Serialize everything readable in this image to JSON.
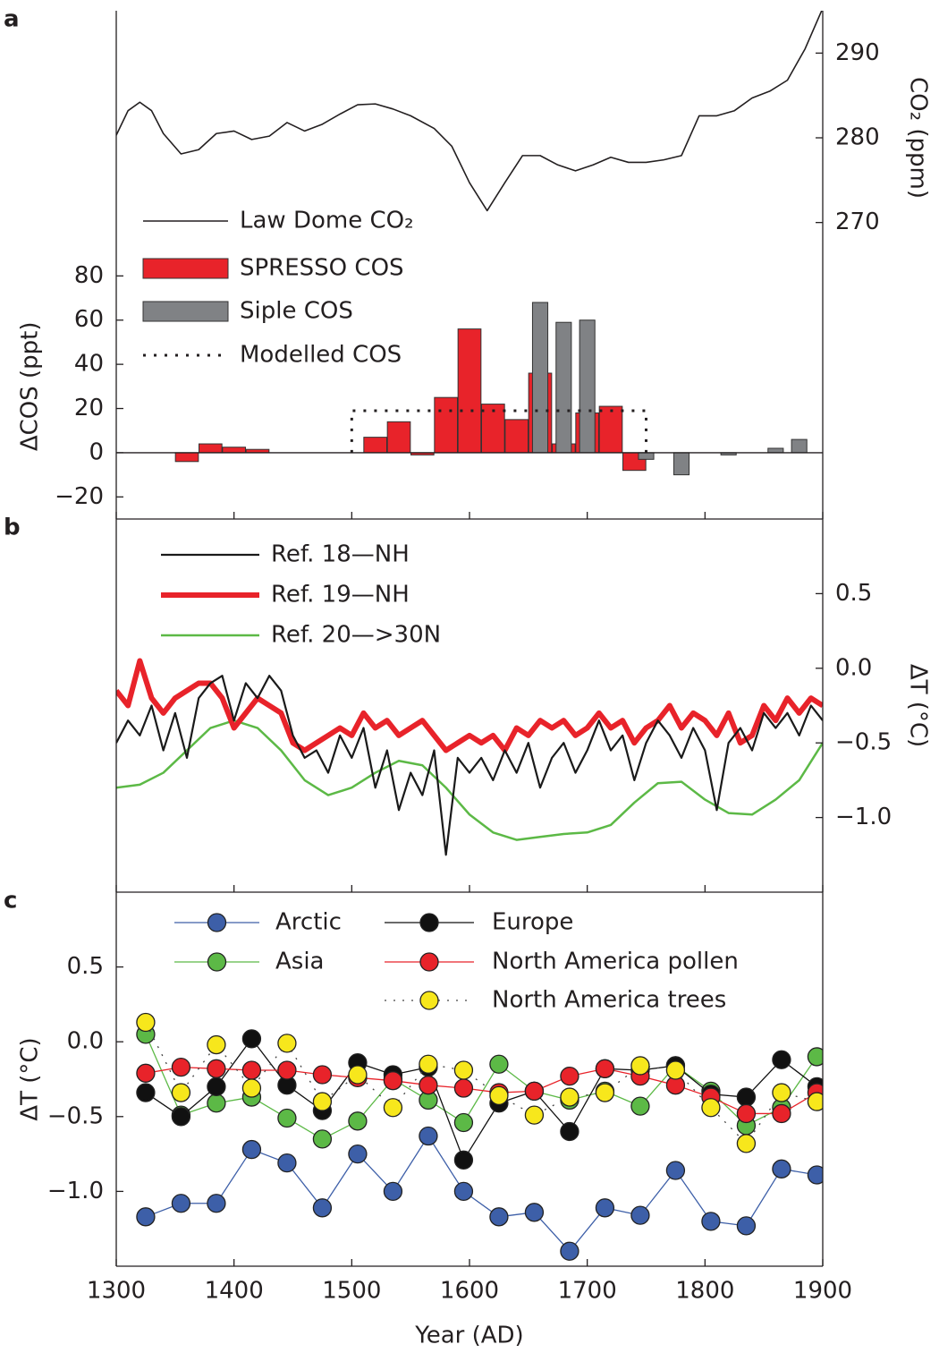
{
  "chart_data": [
    {
      "type": "bar",
      "panel_label": "a",
      "ylabel": "ΔCOS (ppt)",
      "y2label": "CO₂ (ppm)",
      "xlim": [
        1300,
        1900
      ],
      "ylim": [
        -30,
        200
      ],
      "yticks": [
        {
          "value": -20,
          "label": "−20"
        },
        0,
        20,
        40,
        60,
        80
      ],
      "y2lim": [
        235,
        295
      ],
      "y2ticks": [
        270,
        280,
        290
      ],
      "legend": "upper left",
      "series": [
        {
          "name": "Law Dome CO₂",
          "type": "line",
          "axis": "y2",
          "color": "#231f20",
          "x": [
            1300,
            1310,
            1320,
            1330,
            1340,
            1355,
            1370,
            1385,
            1400,
            1415,
            1430,
            1445,
            1460,
            1475,
            1490,
            1505,
            1520,
            1535,
            1550,
            1570,
            1585,
            1600,
            1615,
            1630,
            1645,
            1660,
            1675,
            1690,
            1705,
            1720,
            1735,
            1750,
            1765,
            1780,
            1795,
            1810,
            1825,
            1840,
            1855,
            1870,
            1885,
            1900
          ],
          "values": [
            280.3,
            283.2,
            284.2,
            283.2,
            280.5,
            278.1,
            278.6,
            280.5,
            280.8,
            279.8,
            280.2,
            281.8,
            280.8,
            281.6,
            282.8,
            283.9,
            284.0,
            283.4,
            282.6,
            281.1,
            279.0,
            274.7,
            271.4,
            274.7,
            277.9,
            277.9,
            276.8,
            276.1,
            276.8,
            277.7,
            277.1,
            277.1,
            277.4,
            277.9,
            282.6,
            282.6,
            283.2,
            284.7,
            285.5,
            286.8,
            290.5,
            295.3
          ]
        },
        {
          "name": "SPRESSO COS",
          "color": "#e8232a",
          "x": [
            1360,
            1380,
            1400,
            1420,
            1520,
            1540,
            1560,
            1580,
            1600,
            1620,
            1640,
            1660,
            1680,
            1700,
            1720,
            1740
          ],
          "values": [
            -4,
            4,
            2.5,
            1.5,
            7,
            14,
            -1,
            25,
            56,
            22,
            15,
            36,
            4,
            18,
            21,
            -8
          ]
        },
        {
          "name": "Siple COS",
          "color": "#808285",
          "x": [
            1660,
            1680,
            1700,
            1750,
            1780,
            1820,
            1860,
            1880
          ],
          "values": [
            68,
            59,
            60,
            -3,
            -10,
            -1,
            2,
            6
          ]
        },
        {
          "name": "Modelled COS",
          "type": "line",
          "line_style": "dotted",
          "color": "#231f20",
          "x": [
            1500,
            1500,
            1750,
            1750
          ],
          "values": [
            0,
            19,
            19,
            0
          ]
        }
      ]
    },
    {
      "type": "line",
      "panel_label": "b",
      "ylabel": "ΔT (°C)",
      "y_axis": "right",
      "xlim": [
        1300,
        1900
      ],
      "ylim": [
        -1.5,
        1.0
      ],
      "yticks": [
        0.5,
        {
          "value": 0,
          "label": "0.0"
        },
        {
          "value": -0.5,
          "label": "−0.5"
        },
        {
          "value": -1,
          "label": "−1.0"
        }
      ],
      "legend": "upper left",
      "series": [
        {
          "name": "Ref. 18—NH",
          "color": "#1a1a1a",
          "x": [
            1300,
            1310,
            1320,
            1330,
            1340,
            1350,
            1360,
            1370,
            1380,
            1390,
            1400,
            1410,
            1420,
            1430,
            1440,
            1450,
            1460,
            1470,
            1480,
            1490,
            1500,
            1510,
            1520,
            1530,
            1540,
            1550,
            1560,
            1570,
            1580,
            1590,
            1600,
            1610,
            1620,
            1630,
            1640,
            1650,
            1660,
            1670,
            1680,
            1690,
            1700,
            1710,
            1720,
            1730,
            1740,
            1750,
            1760,
            1770,
            1780,
            1790,
            1800,
            1810,
            1820,
            1830,
            1840,
            1850,
            1860,
            1870,
            1880,
            1890,
            1900
          ],
          "values": [
            -0.5,
            -0.35,
            -0.45,
            -0.25,
            -0.55,
            -0.3,
            -0.6,
            -0.2,
            -0.1,
            -0.05,
            -0.35,
            -0.1,
            -0.2,
            -0.05,
            -0.15,
            -0.45,
            -0.6,
            -0.55,
            -0.7,
            -0.45,
            -0.6,
            -0.4,
            -0.8,
            -0.55,
            -0.95,
            -0.7,
            -0.85,
            -0.55,
            -1.25,
            -0.6,
            -0.7,
            -0.6,
            -0.75,
            -0.55,
            -0.7,
            -0.5,
            -0.8,
            -0.6,
            -0.5,
            -0.7,
            -0.55,
            -0.35,
            -0.55,
            -0.45,
            -0.75,
            -0.5,
            -0.35,
            -0.45,
            -0.6,
            -0.4,
            -0.55,
            -0.95,
            -0.5,
            -0.4,
            -0.55,
            -0.3,
            -0.4,
            -0.3,
            -0.45,
            -0.25,
            -0.35
          ]
        },
        {
          "name": "Ref. 19—NH",
          "color": "#e8232a",
          "x": [
            1300,
            1310,
            1320,
            1330,
            1340,
            1350,
            1360,
            1370,
            1380,
            1390,
            1400,
            1410,
            1420,
            1430,
            1440,
            1450,
            1460,
            1470,
            1480,
            1490,
            1500,
            1510,
            1520,
            1530,
            1540,
            1550,
            1560,
            1570,
            1580,
            1590,
            1600,
            1610,
            1620,
            1630,
            1640,
            1650,
            1660,
            1670,
            1680,
            1690,
            1700,
            1710,
            1720,
            1730,
            1740,
            1750,
            1760,
            1770,
            1780,
            1790,
            1800,
            1810,
            1820,
            1830,
            1840,
            1850,
            1860,
            1870,
            1880,
            1890,
            1900
          ],
          "values": [
            -0.15,
            -0.25,
            0.05,
            -0.2,
            -0.3,
            -0.2,
            -0.15,
            -0.1,
            -0.1,
            -0.2,
            -0.4,
            -0.3,
            -0.2,
            -0.25,
            -0.3,
            -0.5,
            -0.55,
            -0.5,
            -0.45,
            -0.4,
            -0.45,
            -0.3,
            -0.4,
            -0.35,
            -0.45,
            -0.4,
            -0.35,
            -0.45,
            -0.55,
            -0.5,
            -0.45,
            -0.5,
            -0.45,
            -0.55,
            -0.4,
            -0.45,
            -0.35,
            -0.4,
            -0.35,
            -0.45,
            -0.4,
            -0.3,
            -0.4,
            -0.35,
            -0.5,
            -0.4,
            -0.35,
            -0.25,
            -0.4,
            -0.3,
            -0.35,
            -0.45,
            -0.3,
            -0.5,
            -0.45,
            -0.25,
            -0.35,
            -0.2,
            -0.3,
            -0.2,
            -0.25
          ]
        },
        {
          "name": "Ref. 20—>30N",
          "color": "#5cb946",
          "x": [
            1300,
            1320,
            1340,
            1360,
            1380,
            1400,
            1420,
            1440,
            1460,
            1480,
            1500,
            1520,
            1540,
            1560,
            1580,
            1600,
            1620,
            1640,
            1660,
            1680,
            1700,
            1720,
            1740,
            1760,
            1780,
            1800,
            1820,
            1840,
            1860,
            1880,
            1900
          ],
          "values": [
            -0.8,
            -0.78,
            -0.7,
            -0.55,
            -0.4,
            -0.35,
            -0.4,
            -0.55,
            -0.75,
            -0.85,
            -0.8,
            -0.7,
            -0.62,
            -0.65,
            -0.8,
            -0.98,
            -1.1,
            -1.15,
            -1.13,
            -1.11,
            -1.1,
            -1.05,
            -0.9,
            -0.77,
            -0.76,
            -0.88,
            -0.97,
            -0.98,
            -0.88,
            -0.75,
            -0.5
          ]
        }
      ]
    },
    {
      "type": "line",
      "marker": "circle",
      "panel_label": "c",
      "ylabel": "ΔT (°C)",
      "xlabel": "Year (AD)",
      "xlim": [
        1300,
        1900
      ],
      "xticks": [
        1300,
        1400,
        1500,
        1600,
        1700,
        1800,
        1900
      ],
      "ylim": [
        -1.5,
        1.0
      ],
      "yticks": [
        0.5,
        {
          "value": 0,
          "label": "0.0"
        },
        {
          "value": -0.5,
          "label": "−0.5"
        },
        {
          "value": -1,
          "label": "−1.0"
        }
      ],
      "legend": "upper left",
      "x": [
        1325,
        1355,
        1385,
        1415,
        1445,
        1475,
        1505,
        1535,
        1565,
        1595,
        1625,
        1655,
        1685,
        1715,
        1745,
        1775,
        1805,
        1835,
        1865,
        1895
      ],
      "series": [
        {
          "name": "Arctic",
          "color": "#3d5fa8",
          "values": [
            -1.17,
            -1.08,
            -1.08,
            -0.72,
            -0.81,
            -1.11,
            -0.75,
            -1.0,
            -0.63,
            -1.0,
            -1.17,
            -1.14,
            -1.4,
            -1.11,
            -1.16,
            -0.86,
            -1.2,
            -1.23,
            -0.85,
            -0.89
          ]
        },
        {
          "name": "Asia",
          "color": "#5cb946",
          "values": [
            0.05,
            -0.49,
            -0.41,
            -0.37,
            -0.51,
            -0.65,
            -0.53,
            -0.25,
            -0.39,
            -0.54,
            -0.15,
            -0.33,
            -0.39,
            -0.33,
            -0.43,
            -0.16,
            -0.33,
            -0.56,
            -0.44,
            -0.1
          ]
        },
        {
          "name": "Europe",
          "color": "#111111",
          "values": [
            -0.34,
            -0.5,
            -0.3,
            0.02,
            -0.29,
            -0.46,
            -0.14,
            -0.22,
            -0.17,
            -0.79,
            -0.41,
            -0.33,
            -0.6,
            -0.18,
            -0.19,
            -0.16,
            -0.35,
            -0.37,
            -0.12,
            -0.3
          ]
        },
        {
          "name": "North America pollen",
          "color": "#e8232a",
          "values": [
            -0.21,
            -0.17,
            -0.18,
            -0.19,
            -0.19,
            -0.22,
            -0.24,
            -0.26,
            -0.29,
            -0.31,
            -0.34,
            -0.33,
            -0.23,
            -0.18,
            -0.23,
            -0.29,
            -0.37,
            -0.48,
            -0.48,
            -0.34
          ]
        },
        {
          "name": "North America trees",
          "color": "#f7e71c",
          "line_style": "dotted",
          "values": [
            0.13,
            -0.34,
            -0.02,
            -0.31,
            -0.01,
            -0.4,
            -0.22,
            -0.44,
            -0.15,
            -0.19,
            -0.36,
            -0.49,
            -0.37,
            -0.34,
            -0.16,
            -0.19,
            -0.44,
            -0.68,
            -0.34,
            -0.4
          ]
        }
      ]
    }
  ]
}
